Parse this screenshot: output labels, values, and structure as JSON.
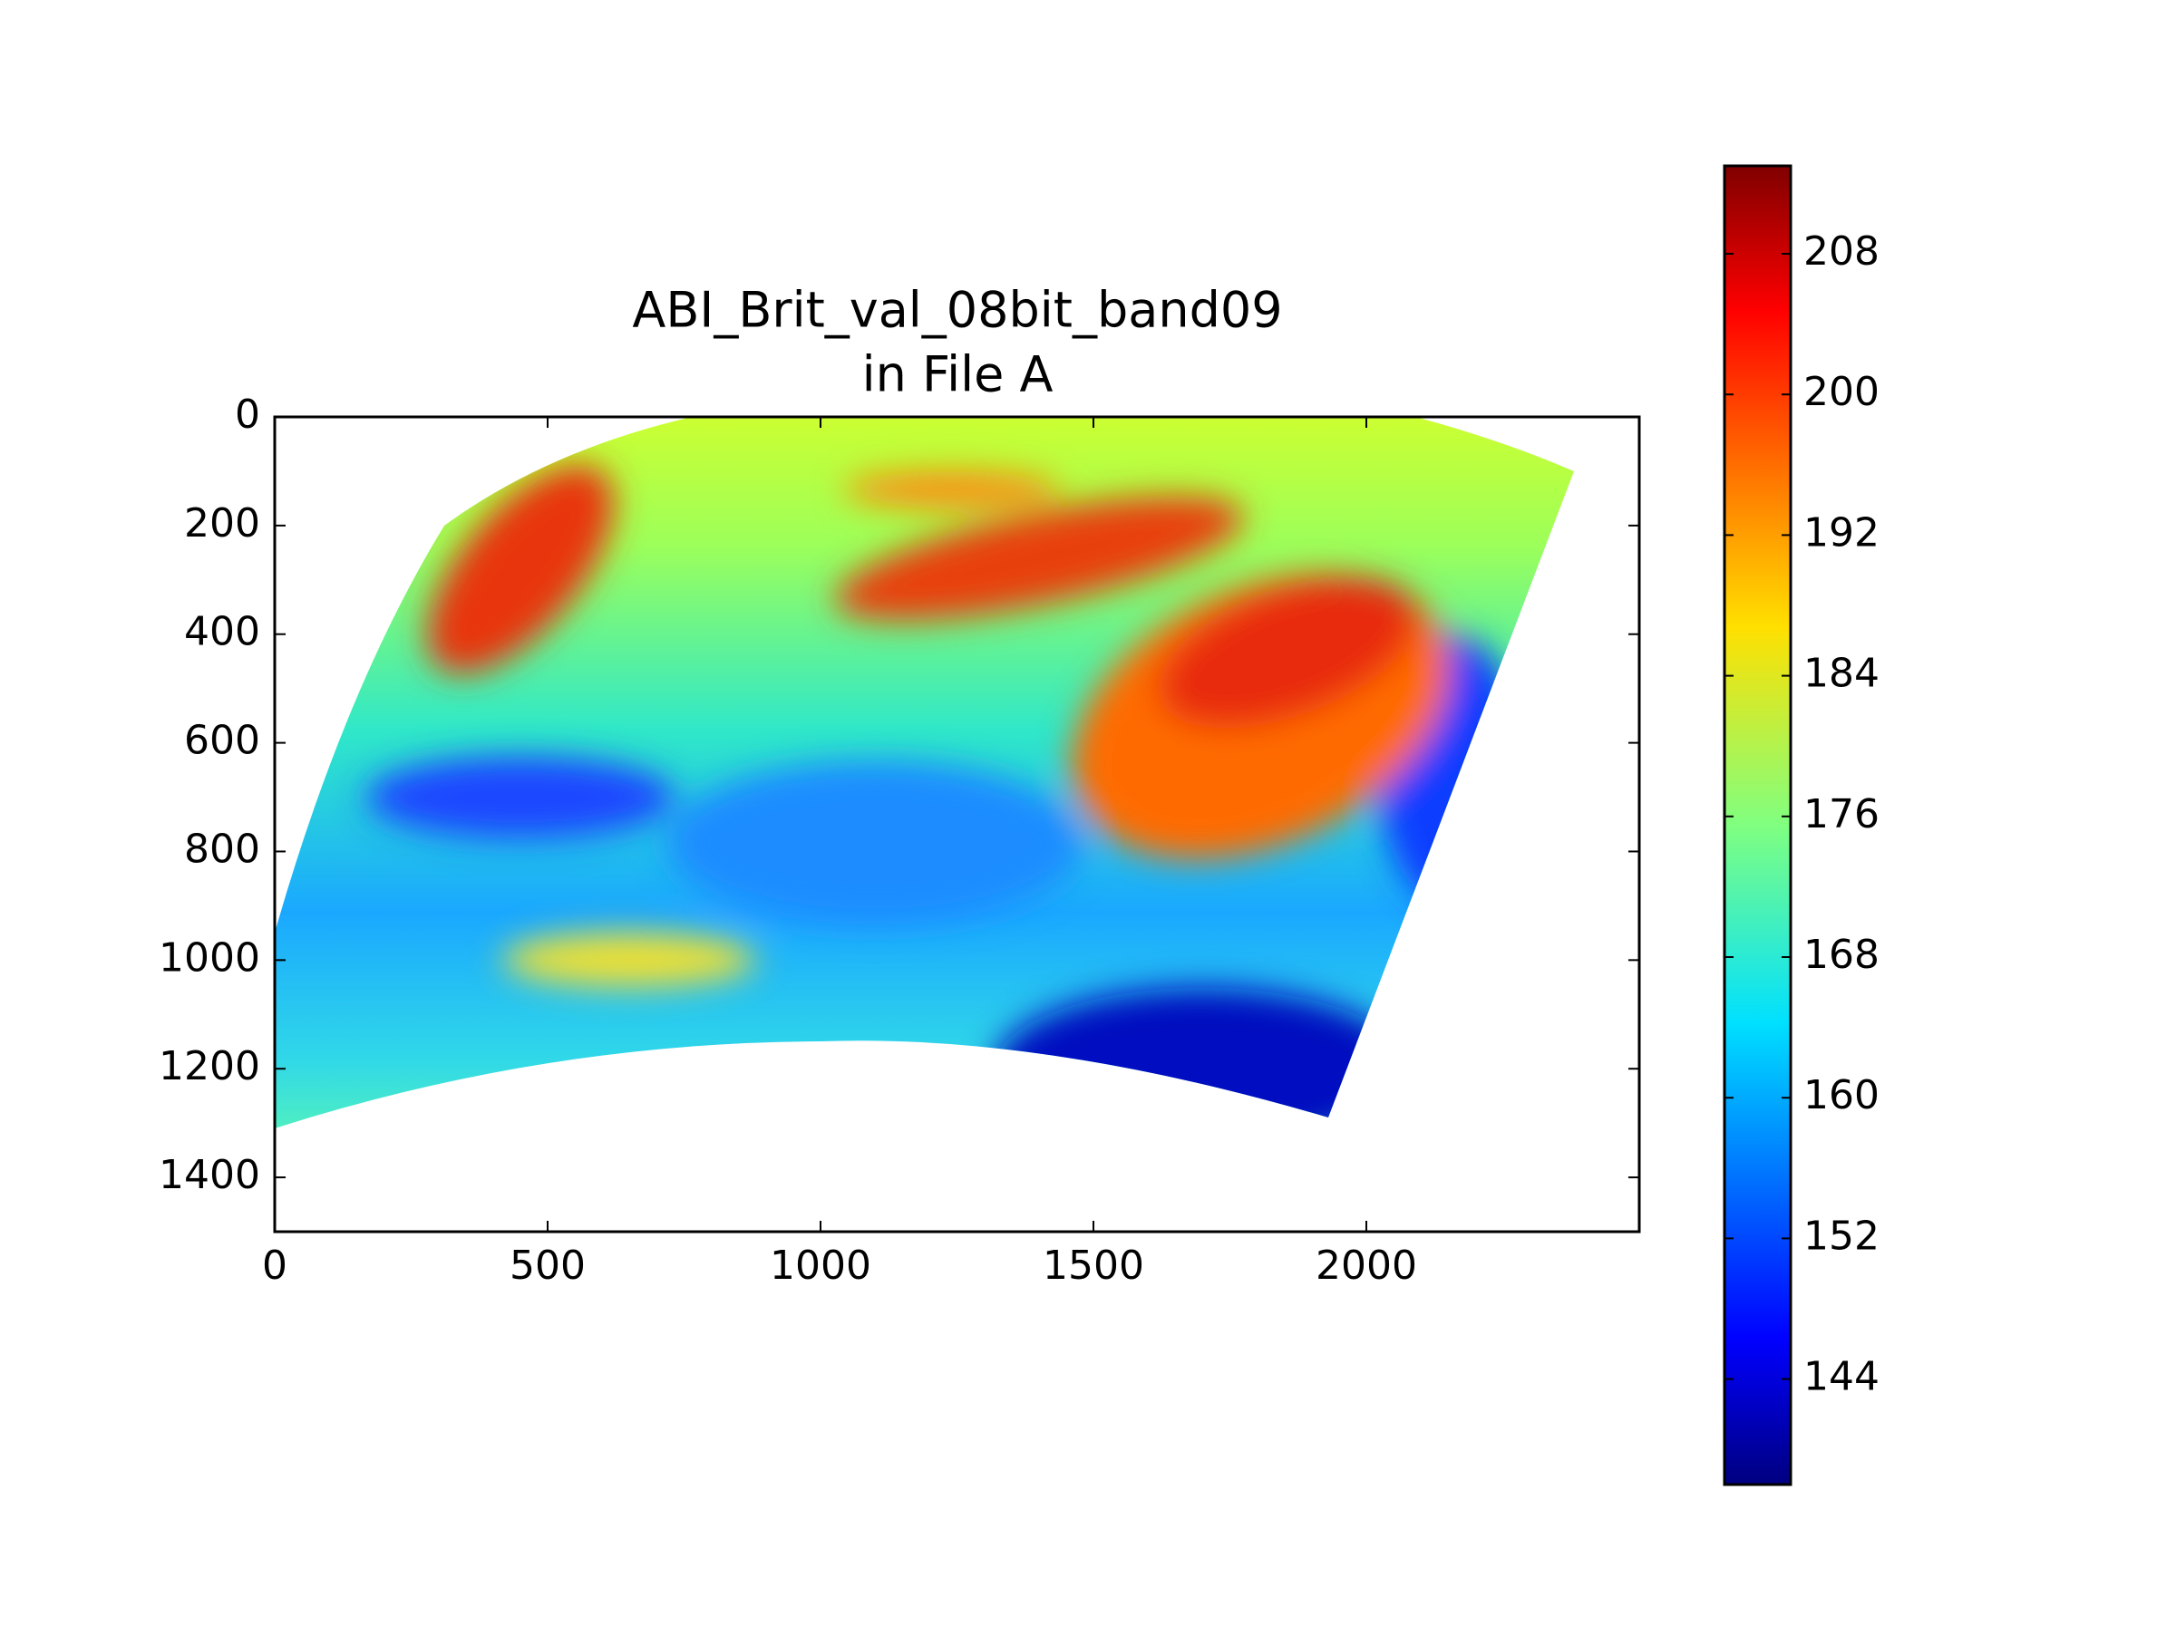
{
  "chart_data": {
    "type": "heatmap",
    "title": [
      "ABI_Brit_val_08bit_band09",
      "in File A"
    ],
    "xlim": [
      0,
      2500
    ],
    "ylim": [
      1500,
      0
    ],
    "xticks": [
      0,
      500,
      1000,
      1500,
      2000
    ],
    "yticks": [
      0,
      200,
      400,
      600,
      800,
      1000,
      1200,
      1400
    ],
    "colorbar": {
      "colormap": "jet",
      "clim": [
        138,
        213
      ],
      "ticks": [
        144,
        152,
        160,
        168,
        176,
        184,
        192,
        200,
        208
      ]
    }
  }
}
